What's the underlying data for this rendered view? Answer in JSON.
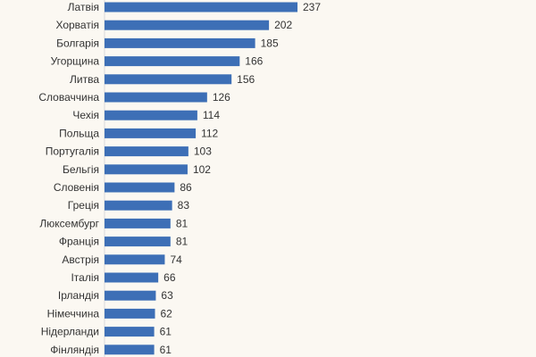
{
  "chart_data": {
    "type": "bar",
    "orientation": "horizontal",
    "title": "",
    "xlabel": "",
    "ylabel": "",
    "categories": [
      "Латвія",
      "Хорватія",
      "Болгарія",
      "Угорщина",
      "Литва",
      "Словаччина",
      "Чехія",
      "Польща",
      "Португалія",
      "Бельгія",
      "Словенія",
      "Греція",
      "Люксембург",
      "Франція",
      "Австрія",
      "Італія",
      "Ірландія",
      "Німеччина",
      "Нідерланди",
      "Фінляндія"
    ],
    "values": [
      237,
      202,
      185,
      166,
      156,
      126,
      114,
      112,
      103,
      102,
      86,
      83,
      81,
      81,
      74,
      66,
      63,
      62,
      61,
      61
    ],
    "value_labels": [
      "237",
      "202",
      "185",
      "166",
      "156",
      "126",
      "114",
      "112",
      "103",
      "102",
      "86",
      "83",
      "81",
      "81",
      "74",
      "66",
      "63",
      "62",
      "61",
      "61"
    ],
    "xlim": [
      0,
      237
    ],
    "grid": false,
    "colors": {
      "bar": "#3d6fb6",
      "background": "#fbf8f2"
    }
  }
}
